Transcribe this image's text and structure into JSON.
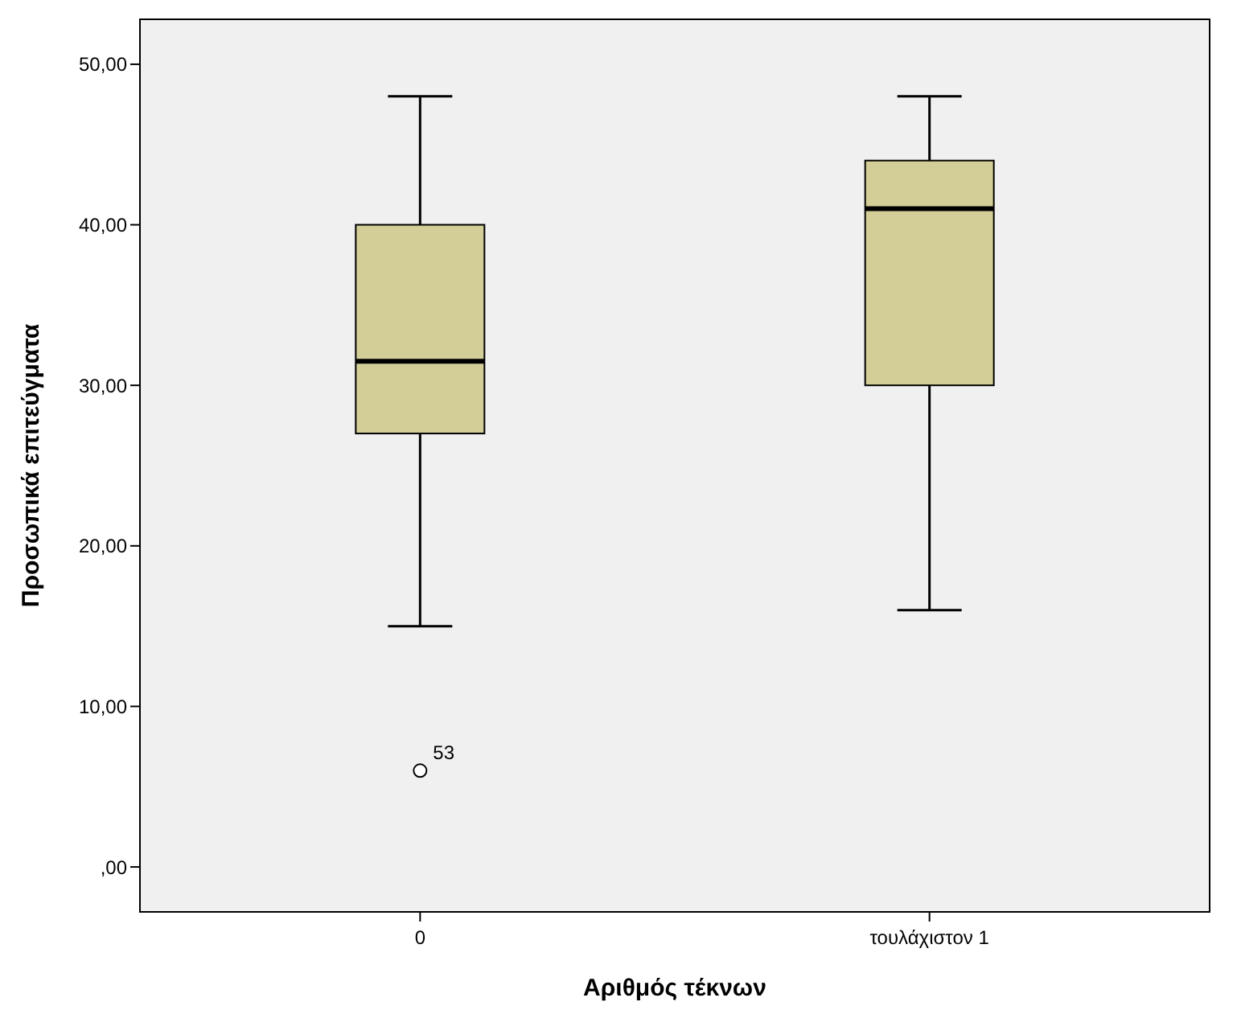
{
  "chart_data": {
    "type": "box",
    "xlabel": "Αριθμός τέκνων",
    "ylabel": "Προσωπικά επιτεύγματα",
    "categories": [
      "0",
      "τουλάχιστον 1"
    ],
    "color": "#d3ce97",
    "boxes": [
      {
        "low": 15,
        "q1": 27,
        "median": 31.5,
        "q3": 40,
        "high": 48,
        "outliers": [
          6
        ]
      },
      {
        "low": 16,
        "q1": 30,
        "median": 41,
        "q3": 44,
        "high": 48
      }
    ],
    "ylim": [
      -2.8,
      52.8
    ],
    "yticks": [
      {
        "value": 0,
        "label": ",00"
      },
      {
        "value": 10,
        "label": "10,00"
      },
      {
        "value": 20,
        "label": "20,00"
      },
      {
        "value": 30,
        "label": "30,00"
      },
      {
        "value": 40,
        "label": "40,00"
      },
      {
        "value": 50,
        "label": "50,00"
      }
    ],
    "annotations": [
      "53"
    ],
    "grid": false
  }
}
